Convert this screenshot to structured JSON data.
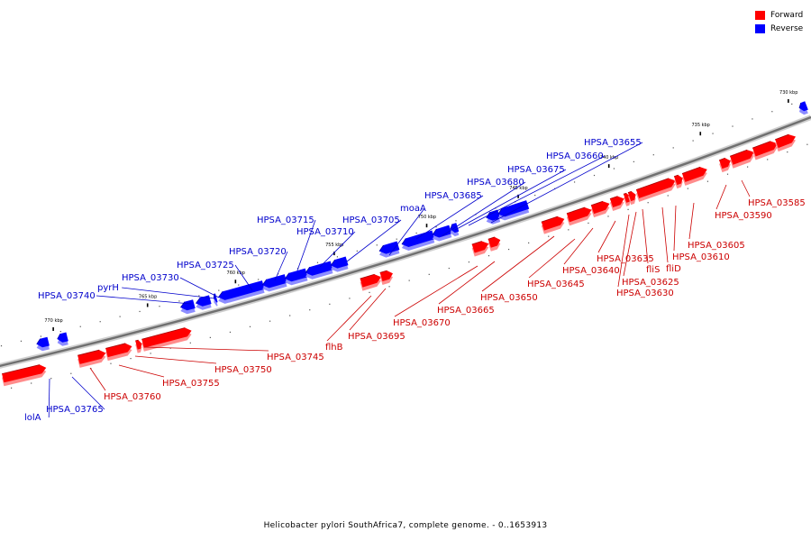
{
  "legend": [
    {
      "label": "Forward",
      "color": "#ff0000"
    },
    {
      "label": "Reverse",
      "color": "#0000ff"
    }
  ],
  "caption": "Helicobacter pylori SouthAfrica7, complete genome. - 0..1653913",
  "colors": {
    "forward": "#ff0000",
    "reverse": "#0000ff",
    "forward_label": "#cc0000",
    "reverse_label": "#0000cc",
    "axis": "#707070"
  },
  "scale": {
    "unit": "kbp",
    "ticks": [
      730,
      735,
      740,
      745,
      750,
      755,
      760,
      765,
      770
    ]
  },
  "reverse_genes": [
    "HPSA_03655",
    "HPSA_03660",
    "HPSA_03675",
    "HPSA_03680",
    "HPSA_03685",
    "moaA",
    "HPSA_03705",
    "HPSA_03710",
    "HPSA_03715",
    "HPSA_03720",
    "HPSA_03725",
    "HPSA_03730",
    "pyrH",
    "HPSA_03740",
    "lolA",
    "HPSA_03765"
  ],
  "forward_genes": [
    "HPSA_03585",
    "HPSA_03590",
    "HPSA_03605",
    "HPSA_03610",
    "fliD",
    "fliS",
    "HPSA_03625",
    "HPSA_03630",
    "HPSA_03635",
    "HPSA_03640",
    "HPSA_03645",
    "HPSA_03650",
    "HPSA_03665",
    "HPSA_03670",
    "HPSA_03695",
    "flhB",
    "HPSA_03745",
    "HPSA_03750",
    "HPSA_03755",
    "HPSA_03760"
  ]
}
